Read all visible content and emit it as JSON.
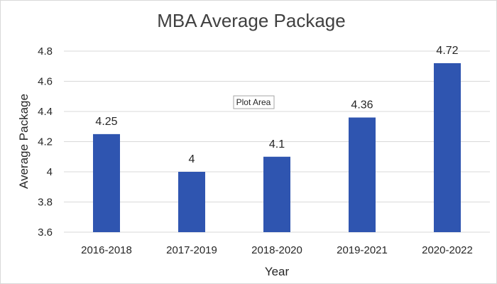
{
  "chart_data": {
    "type": "bar",
    "title": "MBA Average Package",
    "xlabel": "Year",
    "ylabel": "Average Package",
    "categories": [
      "2016-2018",
      "2017-2019",
      "2018-2020",
      "2019-2021",
      "2020-2022"
    ],
    "values": [
      4.25,
      4,
      4.1,
      4.36,
      4.72
    ],
    "data_labels": [
      "4.25",
      "4",
      "4.1",
      "4.36",
      "4.72"
    ],
    "ylim": [
      3.6,
      4.8
    ],
    "yticks": [
      3.6,
      3.8,
      4,
      4.2,
      4.4,
      4.6,
      4.8
    ],
    "ytick_labels": [
      "3.6",
      "3.8",
      "4",
      "4.2",
      "4.4",
      "4.6",
      "4.8"
    ],
    "grid": true,
    "legend": "none",
    "bar_color": "#2f55b0"
  },
  "tooltip": {
    "text": "Plot Area"
  }
}
